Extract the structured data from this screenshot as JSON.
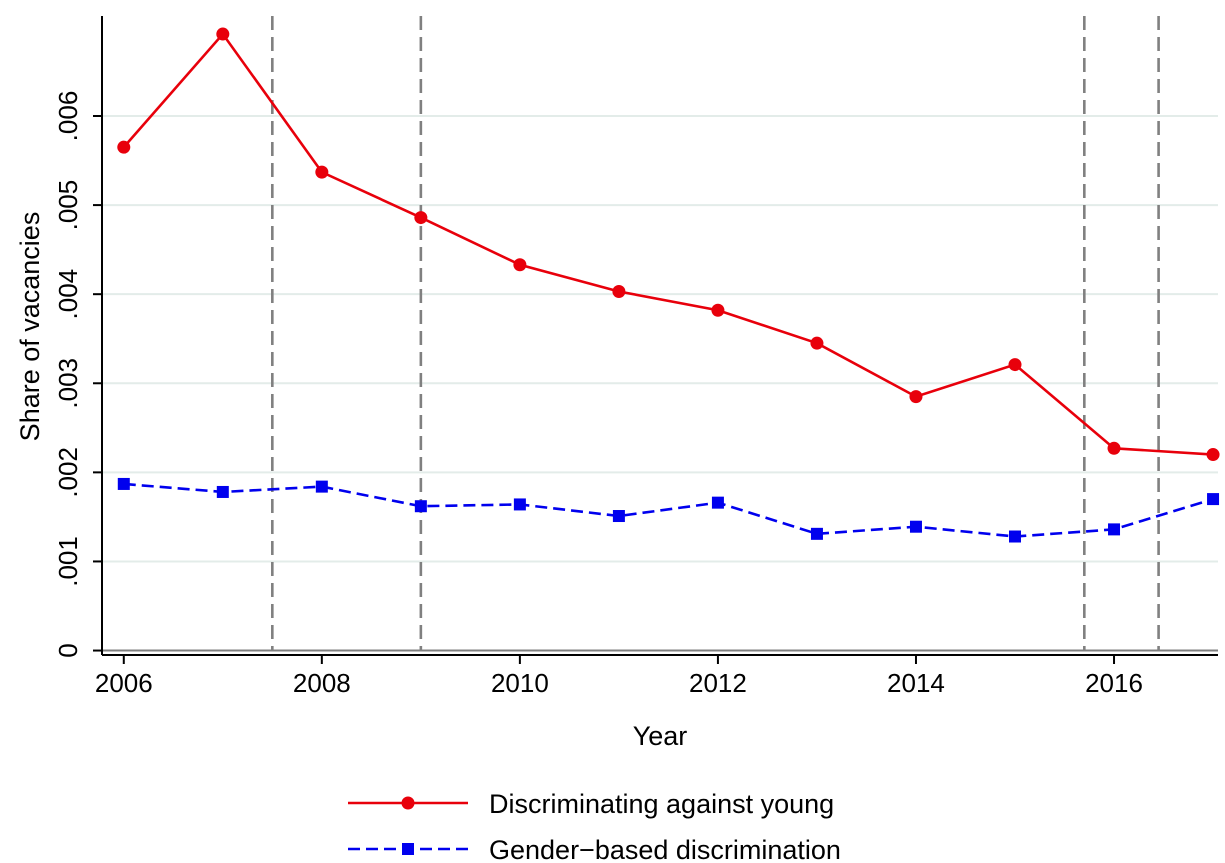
{
  "chart_data": {
    "type": "line",
    "title": "",
    "xlabel": "Year",
    "ylabel": "Share of vacancies",
    "x": [
      2006,
      2007,
      2008,
      2009,
      2010,
      2011,
      2012,
      2013,
      2014,
      2015,
      2016,
      2017
    ],
    "xlim": [
      2005.78,
      2017.05
    ],
    "ylim": [
      -5e-05,
      0.0071
    ],
    "x_ticks": [
      2006,
      2008,
      2010,
      2012,
      2014,
      2016
    ],
    "x_tick_labels": [
      "2006",
      "2008",
      "2010",
      "2012",
      "2014",
      "2016"
    ],
    "y_ticks": [
      0,
      0.001,
      0.002,
      0.003,
      0.004,
      0.005,
      0.006
    ],
    "y_tick_labels": [
      "0",
      ".001",
      ".002",
      ".003",
      ".004",
      ".005",
      ".006"
    ],
    "vertical_reference_lines": [
      2007.5,
      2009.0,
      2015.7,
      2016.45
    ],
    "grid": true,
    "legend_position": "bottom",
    "series": [
      {
        "name": "Discriminating against young",
        "color": "#e8000b",
        "line_style": "solid",
        "marker": "circle",
        "values": [
          0.00565,
          0.00692,
          0.00537,
          0.00486,
          0.00433,
          0.00403,
          0.00382,
          0.00345,
          0.00285,
          0.00321,
          0.00227,
          0.0022
        ]
      },
      {
        "name": "Gender−based discrimination",
        "color": "#0000ee",
        "line_style": "dashed",
        "marker": "square",
        "values": [
          0.00187,
          0.00178,
          0.00184,
          0.00162,
          0.00164,
          0.00151,
          0.00166,
          0.00131,
          0.00139,
          0.00128,
          0.00136,
          0.0017
        ]
      }
    ]
  }
}
